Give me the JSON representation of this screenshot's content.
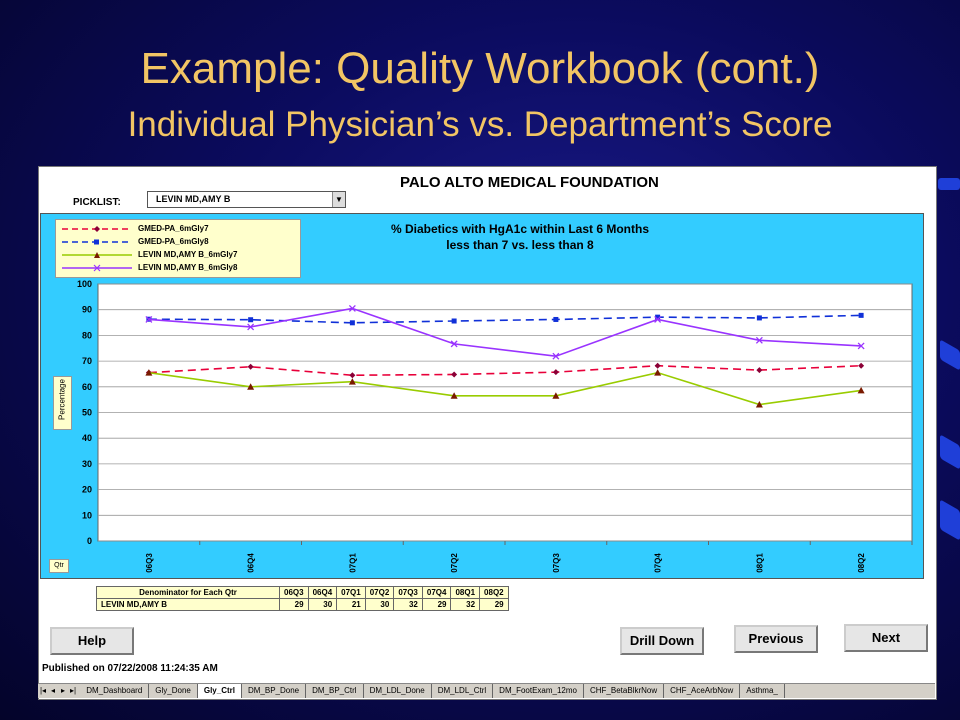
{
  "slide": {
    "title_line1": "Example: Quality Workbook (cont.)",
    "title_line2": "Individual Physician’s vs. Department’s Score"
  },
  "workbook": {
    "org_title": "PALO ALTO  MEDICAL  FOUNDATION",
    "picklist_label": "PICKLIST:",
    "picklist_value": "LEVIN MD,AMY B",
    "published": "Published on 07/22/2008 11:24:35 AM",
    "buttons": {
      "help": "Help",
      "drill_down": "Drill Down",
      "previous": "Previous",
      "next": "Next"
    },
    "qtr_label": "Qtr",
    "denominator": {
      "header": "Denominator for Each Qtr",
      "quarters": [
        "06Q3",
        "06Q4",
        "07Q1",
        "07Q2",
        "07Q3",
        "07Q4",
        "08Q1",
        "08Q2"
      ],
      "row_label": "LEVIN MD,AMY B",
      "values": [
        "29",
        "30",
        "21",
        "30",
        "32",
        "29",
        "32",
        "29"
      ]
    },
    "sheet_tabs": [
      "DM_Dashboard",
      "Gly_Done",
      "Gly_Ctrl",
      "DM_BP_Done",
      "DM_BP_Ctrl",
      "DM_LDL_Done",
      "DM_LDL_Ctrl",
      "DM_FootExam_12mo",
      "CHF_BetaBlkrNow",
      "CHF_AceArbNow",
      "Asthma_"
    ],
    "active_tab": "Gly_Ctrl"
  },
  "chart_data": {
    "type": "line",
    "title": "% Diabetics with HgA1c within Last 6 Months",
    "subtitle": "less than 7 vs. less than 8",
    "ylabel": "Percentage",
    "xlabel": "Qtr",
    "ylim": [
      0,
      100
    ],
    "yticks": [
      "0",
      "10",
      "20",
      "30",
      "40",
      "50",
      "60",
      "70",
      "80",
      "90",
      "100"
    ],
    "categories": [
      "06Q3",
      "06Q4",
      "07Q1",
      "07Q2",
      "07Q3",
      "07Q4",
      "08Q1",
      "08Q2"
    ],
    "grid": true,
    "legend_position": "top-left",
    "series": [
      {
        "name": "GMED-PA_6mGly7",
        "color": "#e8003a",
        "dash": true,
        "marker": "diamond",
        "values": [
          65.5,
          67.8,
          64.5,
          64.8,
          65.7,
          68.2,
          66.5,
          68.2
        ]
      },
      {
        "name": "GMED-PA_6mGly8",
        "color": "#1030d8",
        "dash": true,
        "marker": "square",
        "values": [
          86.3,
          86.1,
          84.9,
          85.6,
          86.2,
          87.1,
          86.8,
          87.8
        ]
      },
      {
        "name": "LEVIN MD,AMY B_6mGly7",
        "color": "#99cc00",
        "dash": false,
        "marker": "triangle",
        "values": [
          65.5,
          60.0,
          62.0,
          56.5,
          56.5,
          65.5,
          53.1,
          58.6
        ]
      },
      {
        "name": "LEVIN MD,AMY B_6mGly8",
        "color": "#9933ff",
        "dash": false,
        "marker": "x",
        "values": [
          86.2,
          83.3,
          90.5,
          76.7,
          71.9,
          86.2,
          78.1,
          75.9
        ]
      }
    ]
  }
}
